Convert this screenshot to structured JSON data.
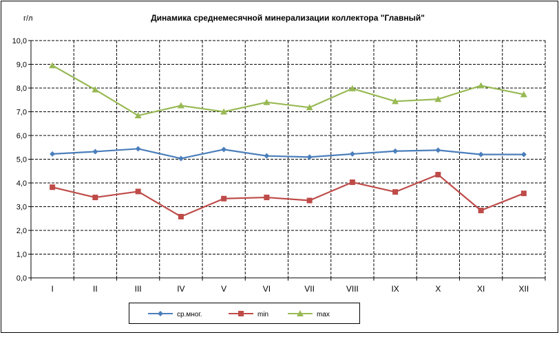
{
  "chart_data": {
    "type": "line",
    "title": "Динамика среднемесячной минерализации коллектора  \"Главный\"",
    "ylabel": "г/л",
    "xlabel": "",
    "categories": [
      "I",
      "II",
      "III",
      "IV",
      "V",
      "VI",
      "VII",
      "VIII",
      "IX",
      "X",
      "XI",
      "XII"
    ],
    "ylim": [
      0,
      10
    ],
    "ytick_labels": [
      "0,0",
      "1,0",
      "2,0",
      "3,0",
      "4,0",
      "5,0",
      "6,0",
      "7,0",
      "8,0",
      "9,0",
      "10,0"
    ],
    "grid": true,
    "legend_position": "bottom",
    "series": [
      {
        "name": "ср.мног.",
        "color": "#4a7ebb",
        "marker": "diamond",
        "values": [
          5.22,
          5.32,
          5.44,
          5.03,
          5.41,
          5.14,
          5.09,
          5.22,
          5.34,
          5.38,
          5.2,
          5.2
        ]
      },
      {
        "name": "min",
        "color": "#be4b48",
        "marker": "square",
        "values": [
          3.82,
          3.39,
          3.64,
          2.58,
          3.34,
          3.39,
          3.26,
          4.03,
          3.62,
          4.35,
          2.84,
          3.56
        ]
      },
      {
        "name": "max",
        "color": "#98b954",
        "marker": "triangle",
        "values": [
          8.95,
          7.93,
          6.84,
          7.26,
          7.0,
          7.4,
          7.18,
          7.98,
          7.44,
          7.53,
          8.1,
          7.73
        ]
      }
    ]
  }
}
